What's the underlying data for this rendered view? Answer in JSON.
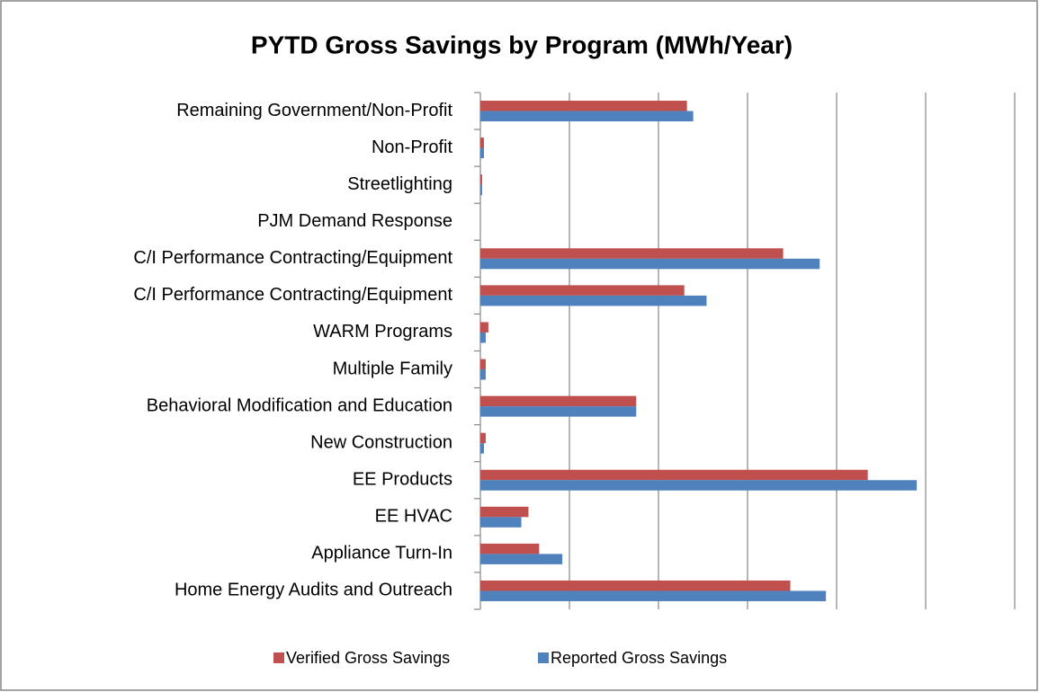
{
  "chart_data": {
    "type": "bar",
    "orientation": "horizontal",
    "title": "PYTD Gross Savings by Program (MWh/Year)",
    "categories": [
      "Remaining Government/Non-Profit",
      "Non-Profit",
      "Streetlighting",
      "PJM Demand Response",
      "C/I Performance Contracting/Equipment",
      "C/I Performance Contracting/Equipment",
      "WARM Programs",
      "Multiple Family",
      "Behavioral Modification and Education",
      "New Construction",
      "EE Products",
      "EE HVAC",
      "Appliance Turn-In",
      "Home Energy Audits and Outreach"
    ],
    "series": [
      {
        "name": "Verified Gross Savings",
        "color": "#c0504d",
        "values": [
          2.32,
          0.04,
          0.02,
          0,
          3.4,
          2.29,
          0.09,
          0.06,
          1.75,
          0.06,
          4.35,
          0.54,
          0.66,
          3.48
        ]
      },
      {
        "name": "Reported Gross Savings",
        "color": "#4f81bd",
        "values": [
          2.39,
          0.04,
          0.02,
          0,
          3.81,
          2.54,
          0.06,
          0.06,
          1.75,
          0.04,
          4.9,
          0.46,
          0.92,
          3.88
        ]
      }
    ],
    "xlim": [
      0,
      6
    ],
    "xticks": [
      0,
      1,
      2,
      3,
      4,
      5,
      6
    ],
    "grid": true,
    "legend": "bottom"
  }
}
